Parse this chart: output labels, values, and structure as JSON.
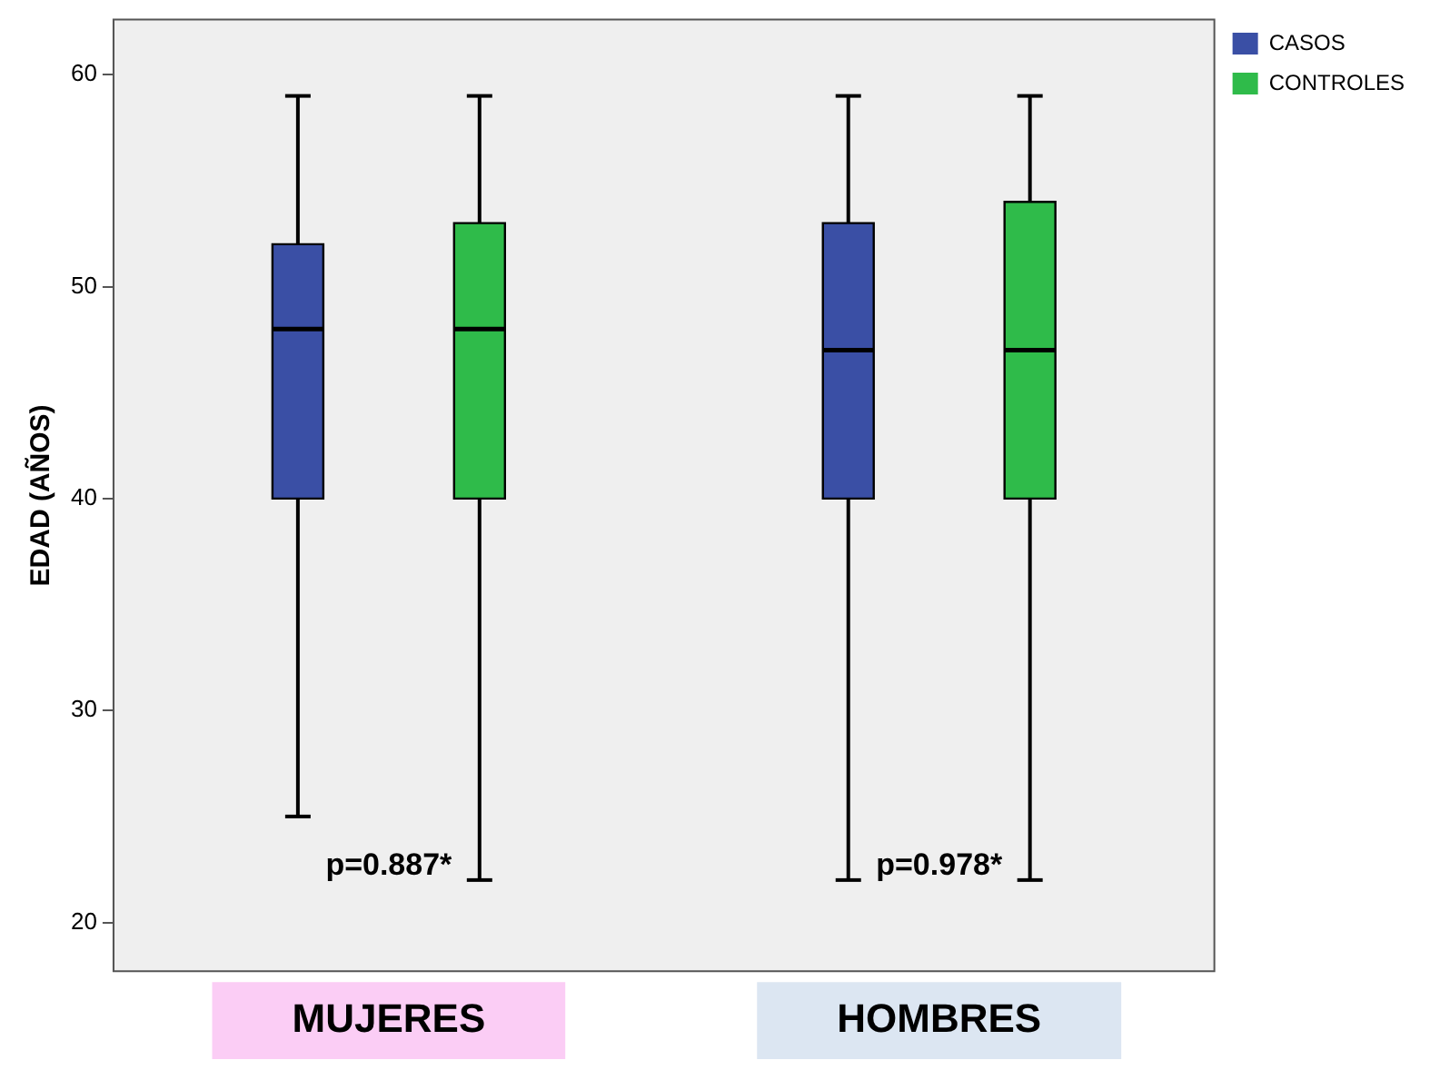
{
  "chart_data": {
    "type": "box",
    "categories": [
      "MUJERES",
      "HOMBRES"
    ],
    "ylabel": "EDAD (AÑOS)",
    "ylim": [
      17.7,
      62.6
    ],
    "yticks": [
      20,
      30,
      40,
      50,
      60
    ],
    "grid": false,
    "legend": "top right",
    "annotations": [
      "p=0.887*",
      "p=0.978*"
    ],
    "series": [
      {
        "name": "CASOS",
        "color": "#3a4fa5",
        "boxes": [
          {
            "low": 25,
            "q1": 40,
            "median": 48,
            "q3": 52,
            "high": 59
          },
          {
            "low": 22,
            "q1": 40,
            "median": 47,
            "q3": 53,
            "high": 59
          }
        ]
      },
      {
        "name": "CONTROLES",
        "color": "#2fbb4a",
        "boxes": [
          {
            "low": 22,
            "q1": 40,
            "median": 48,
            "q3": 53,
            "high": 59
          },
          {
            "low": 22,
            "q1": 40,
            "median": 47,
            "q3": 54,
            "high": 59
          }
        ]
      }
    ]
  }
}
